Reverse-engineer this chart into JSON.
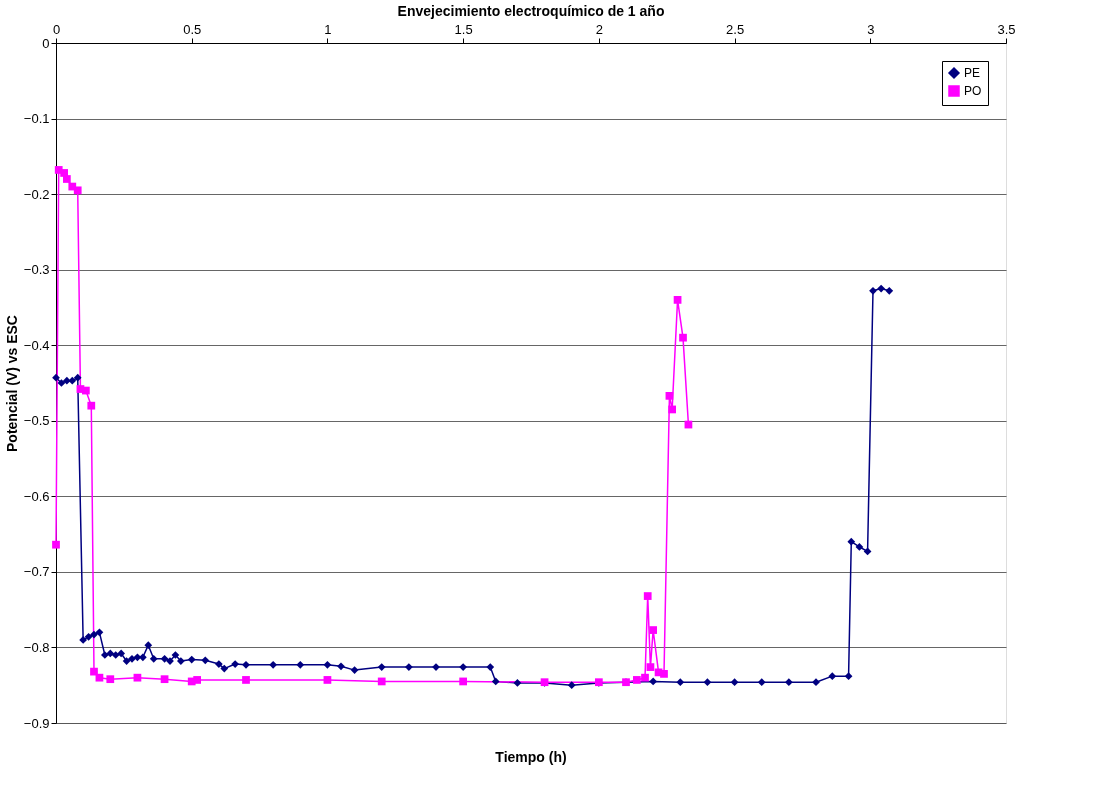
{
  "chart_data": {
    "type": "line",
    "title": "Envejecimiento electroquímico de 1 año",
    "xlabel": "Tiempo (h)",
    "ylabel": "Potencial (V) vs ESC",
    "xlim": [
      0,
      3.5
    ],
    "xticks": [
      0,
      0.5,
      1,
      1.5,
      2,
      2.5,
      3,
      3.5
    ],
    "ylim": [
      -0.9,
      0
    ],
    "yticks": [
      -0.9,
      -0.8,
      -0.7,
      -0.6,
      -0.5,
      -0.4,
      -0.3,
      -0.2,
      -0.1,
      0
    ],
    "grid": "y",
    "legend": "top right",
    "line_style": "solid",
    "series": [
      {
        "name": "PE",
        "color": "#000080",
        "marker": "diamond",
        "x": [
          0,
          0.02,
          0.04,
          0.06,
          0.08,
          0.1,
          0.12,
          0.14,
          0.16,
          0.18,
          0.2,
          0.22,
          0.24,
          0.26,
          0.28,
          0.3,
          0.32,
          0.34,
          0.36,
          0.4,
          0.42,
          0.44,
          0.46,
          0.5,
          0.55,
          0.6,
          0.62,
          0.66,
          0.7,
          0.8,
          0.9,
          1.0,
          1.05,
          1.1,
          1.2,
          1.3,
          1.4,
          1.5,
          1.6,
          1.62,
          1.7,
          1.8,
          1.9,
          2.0,
          2.1,
          2.2,
          2.3,
          2.4,
          2.5,
          2.6,
          2.7,
          2.8,
          2.86,
          2.92,
          2.93,
          2.96,
          2.99,
          3.01,
          3.04,
          3.07
        ],
        "values": [
          -0.443,
          -0.45,
          -0.447,
          -0.447,
          -0.443,
          -0.79,
          -0.786,
          -0.783,
          -0.78,
          -0.81,
          -0.808,
          -0.81,
          -0.808,
          -0.818,
          -0.815,
          -0.813,
          -0.813,
          -0.797,
          -0.815,
          -0.815,
          -0.818,
          -0.81,
          -0.818,
          -0.816,
          -0.817,
          -0.822,
          -0.828,
          -0.822,
          -0.823,
          -0.823,
          -0.823,
          -0.823,
          -0.825,
          -0.83,
          -0.826,
          -0.826,
          -0.826,
          -0.826,
          -0.826,
          -0.845,
          -0.847,
          -0.847,
          -0.85,
          -0.847,
          -0.846,
          -0.845,
          -0.846,
          -0.846,
          -0.846,
          -0.846,
          -0.846,
          -0.846,
          -0.838,
          -0.838,
          -0.66,
          -0.667,
          -0.673,
          -0.328,
          -0.325,
          -0.328
        ]
      },
      {
        "name": "PO",
        "color": "#ff00ff",
        "marker": "square",
        "x": [
          0,
          0.01,
          0.03,
          0.04,
          0.06,
          0.08,
          0.09,
          0.11,
          0.13,
          0.14,
          0.16,
          0.2,
          0.3,
          0.4,
          0.5,
          0.52,
          0.7,
          1.0,
          1.2,
          1.5,
          1.8,
          2.0,
          2.1,
          2.14,
          2.17,
          2.18,
          2.19,
          2.2,
          2.22,
          2.24,
          2.26,
          2.27,
          2.29,
          2.31,
          2.33
        ],
        "values": [
          -0.664,
          -0.168,
          -0.172,
          -0.18,
          -0.19,
          -0.195,
          -0.458,
          -0.46,
          -0.48,
          -0.832,
          -0.84,
          -0.842,
          -0.84,
          -0.842,
          -0.845,
          -0.843,
          -0.843,
          -0.843,
          -0.845,
          -0.845,
          -0.846,
          -0.846,
          -0.846,
          -0.843,
          -0.84,
          -0.732,
          -0.826,
          -0.777,
          -0.833,
          -0.835,
          -0.467,
          -0.485,
          -0.34,
          -0.39,
          -0.505
        ]
      }
    ]
  }
}
